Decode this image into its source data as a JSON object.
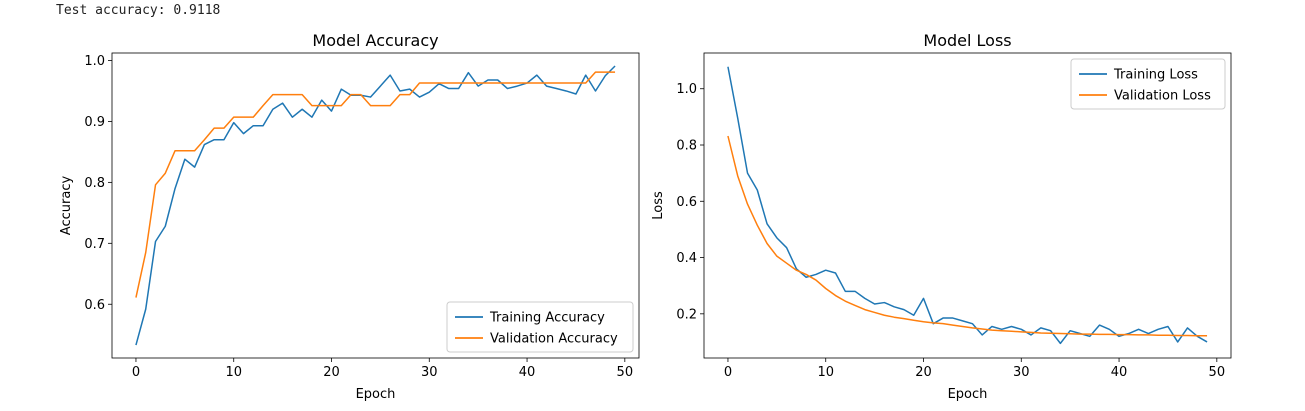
{
  "console": {
    "text": "Test accuracy: 0.9118"
  },
  "chart_data": [
    {
      "type": "line",
      "title": "Model Accuracy",
      "xlabel": "Epoch",
      "ylabel": "Accuracy",
      "xlim": [
        -2.45,
        51.45
      ],
      "ylim": [
        0.5118,
        1.0123
      ],
      "xticks": [
        0,
        10,
        20,
        30,
        40,
        50
      ],
      "yticks": [
        0.6,
        0.7,
        0.8,
        0.9,
        1.0
      ],
      "ytick_labels": [
        "0.6",
        "0.7",
        "0.8",
        "0.9",
        "1.0"
      ],
      "legend_position": "lower-right",
      "grid": false,
      "x": [
        0,
        1,
        2,
        3,
        4,
        5,
        6,
        7,
        8,
        9,
        10,
        11,
        12,
        13,
        14,
        15,
        16,
        17,
        18,
        19,
        20,
        21,
        22,
        23,
        24,
        25,
        26,
        27,
        28,
        29,
        30,
        31,
        32,
        33,
        34,
        35,
        36,
        37,
        38,
        39,
        40,
        41,
        42,
        43,
        44,
        45,
        46,
        47,
        48,
        49
      ],
      "series": [
        {
          "name": "Training Accuracy",
          "color": "#1f77b4",
          "values": [
            0.533,
            0.592,
            0.703,
            0.728,
            0.79,
            0.838,
            0.825,
            0.862,
            0.87,
            0.87,
            0.898,
            0.88,
            0.893,
            0.893,
            0.92,
            0.93,
            0.907,
            0.92,
            0.907,
            0.935,
            0.917,
            0.953,
            0.943,
            0.943,
            0.94,
            0.958,
            0.976,
            0.95,
            0.953,
            0.94,
            0.948,
            0.962,
            0.954,
            0.954,
            0.98,
            0.958,
            0.968,
            0.968,
            0.954,
            0.958,
            0.963,
            0.976,
            0.958,
            0.954,
            0.95,
            0.945,
            0.976,
            0.95,
            0.975,
            0.991
          ]
        },
        {
          "name": "Validation Accuracy",
          "color": "#ff7f0e",
          "values": [
            0.611,
            0.685,
            0.796,
            0.815,
            0.852,
            0.852,
            0.852,
            0.87,
            0.889,
            0.889,
            0.907,
            0.907,
            0.907,
            0.926,
            0.944,
            0.944,
            0.944,
            0.944,
            0.926,
            0.926,
            0.926,
            0.926,
            0.944,
            0.944,
            0.926,
            0.926,
            0.926,
            0.944,
            0.944,
            0.963,
            0.963,
            0.963,
            0.963,
            0.963,
            0.963,
            0.963,
            0.963,
            0.963,
            0.963,
            0.963,
            0.963,
            0.963,
            0.963,
            0.963,
            0.963,
            0.963,
            0.963,
            0.981,
            0.981,
            0.981
          ]
        }
      ]
    },
    {
      "type": "line",
      "title": "Model Loss",
      "xlabel": "Epoch",
      "ylabel": "Loss",
      "xlim": [
        -2.45,
        51.45
      ],
      "ylim": [
        0.043,
        1.127
      ],
      "xticks": [
        0,
        10,
        20,
        30,
        40,
        50
      ],
      "yticks": [
        0.2,
        0.4,
        0.6,
        0.8,
        1.0
      ],
      "ytick_labels": [
        "0.2",
        "0.4",
        "0.6",
        "0.8",
        "1.0"
      ],
      "legend_position": "upper-right",
      "grid": false,
      "x": [
        0,
        1,
        2,
        3,
        4,
        5,
        6,
        7,
        8,
        9,
        10,
        11,
        12,
        13,
        14,
        15,
        16,
        17,
        18,
        19,
        20,
        21,
        22,
        23,
        24,
        25,
        26,
        27,
        28,
        29,
        30,
        31,
        32,
        33,
        34,
        35,
        36,
        37,
        38,
        39,
        40,
        41,
        42,
        43,
        44,
        45,
        46,
        47,
        48,
        49
      ],
      "series": [
        {
          "name": "Training Loss",
          "color": "#1f77b4",
          "values": [
            1.078,
            0.895,
            0.7,
            0.64,
            0.52,
            0.47,
            0.435,
            0.36,
            0.33,
            0.34,
            0.355,
            0.345,
            0.28,
            0.28,
            0.255,
            0.235,
            0.24,
            0.225,
            0.215,
            0.195,
            0.255,
            0.165,
            0.185,
            0.185,
            0.175,
            0.165,
            0.125,
            0.155,
            0.145,
            0.155,
            0.145,
            0.125,
            0.15,
            0.14,
            0.095,
            0.14,
            0.13,
            0.12,
            0.16,
            0.145,
            0.12,
            0.13,
            0.145,
            0.13,
            0.145,
            0.155,
            0.1,
            0.15,
            0.12,
            0.1
          ]
        },
        {
          "name": "Validation Loss",
          "color": "#ff7f0e",
          "values": [
            0.832,
            0.69,
            0.59,
            0.515,
            0.45,
            0.405,
            0.38,
            0.355,
            0.34,
            0.32,
            0.29,
            0.265,
            0.245,
            0.23,
            0.215,
            0.205,
            0.195,
            0.188,
            0.183,
            0.177,
            0.172,
            0.168,
            0.165,
            0.16,
            0.155,
            0.15,
            0.146,
            0.142,
            0.14,
            0.138,
            0.136,
            0.134,
            0.132,
            0.131,
            0.13,
            0.129,
            0.128,
            0.128,
            0.127,
            0.127,
            0.126,
            0.126,
            0.125,
            0.125,
            0.124,
            0.124,
            0.123,
            0.123,
            0.122,
            0.122
          ]
        }
      ]
    }
  ]
}
